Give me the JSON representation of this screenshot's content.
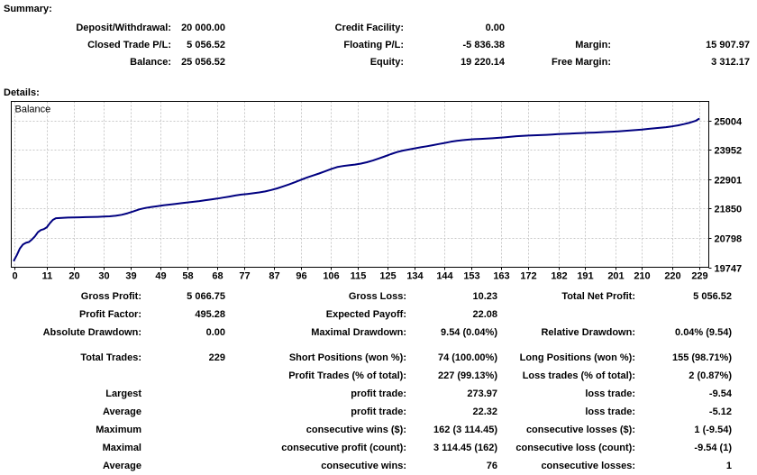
{
  "summary": {
    "heading": "Summary:",
    "r0": {
      "c1l": "Deposit/Withdrawal:",
      "c1v": "20 000.00",
      "c2l": "Credit Facility:",
      "c2v": "0.00"
    },
    "r1": {
      "c1l": "Closed Trade P/L:",
      "c1v": "5 056.52",
      "c2l": "Floating P/L:",
      "c2v": "-5 836.38",
      "c3l": "Margin:",
      "c3v": "15 907.97"
    },
    "r2": {
      "c1l": "Balance:",
      "c1v": "25 056.52",
      "c2l": "Equity:",
      "c2v": "19 220.14",
      "c3l": "Free Margin:",
      "c3v": "3 312.17"
    }
  },
  "details_heading": "Details:",
  "stats": {
    "r0": {
      "c1l": "Gross Profit:",
      "c1v": "5 066.75",
      "c2l": "Gross Loss:",
      "c2v": "10.23",
      "c3l": "Total Net Profit:",
      "c3v": "5 056.52"
    },
    "r1": {
      "c1l": "Profit Factor:",
      "c1v": "495.28",
      "c2l": "Expected Payoff:",
      "c2v": "22.08"
    },
    "r2": {
      "c1l": "Absolute Drawdown:",
      "c1v": "0.00",
      "c2l": "Maximal Drawdown:",
      "c2v": "9.54 (0.04%)",
      "c3l": "Relative Drawdown:",
      "c3v": "0.04% (9.54)"
    },
    "r3": {
      "c1l": "Total Trades:",
      "c1v": "229",
      "c2l": "Short Positions (won %):",
      "c2v": "74 (100.00%)",
      "c3l": "Long Positions (won %):",
      "c3v": "155 (98.71%)"
    },
    "r4": {
      "c2l": "Profit Trades (% of total):",
      "c2v": "227 (99.13%)",
      "c3l": "Loss trades (% of total):",
      "c3v": "2 (0.87%)"
    },
    "r5": {
      "c1l": "Largest",
      "c2l": "profit trade:",
      "c2v": "273.97",
      "c3l": "loss trade:",
      "c3v": "-9.54"
    },
    "r6": {
      "c1l": "Average",
      "c2l": "profit trade:",
      "c2v": "22.32",
      "c3l": "loss trade:",
      "c3v": "-5.12"
    },
    "r7": {
      "c1l": "Maximum",
      "c2l": "consecutive wins ($):",
      "c2v": "162 (3 114.45)",
      "c3l": "consecutive losses ($):",
      "c3v": "1 (-9.54)"
    },
    "r8": {
      "c1l": "Maximal",
      "c2l": "consecutive profit (count):",
      "c2v": "3 114.45 (162)",
      "c3l": "consecutive loss (count):",
      "c3v": "-9.54 (1)"
    },
    "r9": {
      "c1l": "Average",
      "c2l": "consecutive wins:",
      "c2v": "76",
      "c3l": "consecutive losses:",
      "c3v": "1"
    }
  },
  "chart_data": {
    "type": "line",
    "title": "Balance",
    "legend": [
      "Balance"
    ],
    "line_color": "#000080",
    "grid_color": "#c8c8c8",
    "grid": true,
    "x_axis": {
      "max": 229,
      "ticks": [
        0,
        11,
        20,
        30,
        39,
        49,
        58,
        68,
        77,
        87,
        96,
        106,
        115,
        125,
        134,
        144,
        153,
        163,
        172,
        182,
        191,
        201,
        210,
        220,
        229
      ]
    },
    "y_axis": {
      "ticks": [
        19747,
        20798,
        21850,
        22901,
        23952,
        25004
      ]
    },
    "points": [
      [
        0,
        19990
      ],
      [
        1,
        20190
      ],
      [
        2,
        20420
      ],
      [
        3,
        20560
      ],
      [
        4,
        20620
      ],
      [
        5,
        20650
      ],
      [
        6,
        20740
      ],
      [
        7,
        20850
      ],
      [
        8,
        21000
      ],
      [
        9,
        21080
      ],
      [
        10,
        21110
      ],
      [
        11,
        21180
      ],
      [
        12,
        21320
      ],
      [
        13,
        21440
      ],
      [
        14,
        21500
      ],
      [
        16,
        21515
      ],
      [
        18,
        21525
      ],
      [
        20,
        21530
      ],
      [
        22,
        21535
      ],
      [
        24,
        21540
      ],
      [
        26,
        21545
      ],
      [
        28,
        21550
      ],
      [
        30,
        21560
      ],
      [
        32,
        21570
      ],
      [
        34,
        21590
      ],
      [
        36,
        21625
      ],
      [
        38,
        21680
      ],
      [
        40,
        21750
      ],
      [
        42,
        21820
      ],
      [
        44,
        21870
      ],
      [
        46,
        21905
      ],
      [
        48,
        21935
      ],
      [
        50,
        21965
      ],
      [
        52,
        21990
      ],
      [
        54,
        22015
      ],
      [
        56,
        22040
      ],
      [
        58,
        22065
      ],
      [
        60,
        22090
      ],
      [
        62,
        22115
      ],
      [
        64,
        22145
      ],
      [
        66,
        22175
      ],
      [
        68,
        22205
      ],
      [
        70,
        22240
      ],
      [
        72,
        22275
      ],
      [
        74,
        22315
      ],
      [
        76,
        22345
      ],
      [
        78,
        22370
      ],
      [
        80,
        22395
      ],
      [
        82,
        22425
      ],
      [
        84,
        22460
      ],
      [
        86,
        22510
      ],
      [
        88,
        22570
      ],
      [
        90,
        22640
      ],
      [
        92,
        22710
      ],
      [
        94,
        22790
      ],
      [
        96,
        22880
      ],
      [
        98,
        22960
      ],
      [
        100,
        23030
      ],
      [
        102,
        23100
      ],
      [
        104,
        23180
      ],
      [
        106,
        23260
      ],
      [
        108,
        23330
      ],
      [
        110,
        23370
      ],
      [
        112,
        23395
      ],
      [
        114,
        23420
      ],
      [
        116,
        23455
      ],
      [
        118,
        23505
      ],
      [
        120,
        23565
      ],
      [
        122,
        23640
      ],
      [
        124,
        23715
      ],
      [
        126,
        23795
      ],
      [
        128,
        23865
      ],
      [
        130,
        23920
      ],
      [
        132,
        23960
      ],
      [
        134,
        24000
      ],
      [
        136,
        24040
      ],
      [
        138,
        24075
      ],
      [
        140,
        24115
      ],
      [
        142,
        24155
      ],
      [
        144,
        24195
      ],
      [
        146,
        24235
      ],
      [
        148,
        24270
      ],
      [
        150,
        24295
      ],
      [
        152,
        24315
      ],
      [
        154,
        24330
      ],
      [
        156,
        24340
      ],
      [
        158,
        24350
      ],
      [
        160,
        24362
      ],
      [
        162,
        24378
      ],
      [
        164,
        24395
      ],
      [
        166,
        24415
      ],
      [
        168,
        24435
      ],
      [
        170,
        24450
      ],
      [
        172,
        24460
      ],
      [
        174,
        24468
      ],
      [
        176,
        24476
      ],
      [
        178,
        24486
      ],
      [
        180,
        24498
      ],
      [
        182,
        24510
      ],
      [
        184,
        24520
      ],
      [
        186,
        24530
      ],
      [
        188,
        24540
      ],
      [
        190,
        24550
      ],
      [
        192,
        24558
      ],
      [
        194,
        24566
      ],
      [
        196,
        24576
      ],
      [
        198,
        24588
      ],
      [
        200,
        24598
      ],
      [
        202,
        24610
      ],
      [
        204,
        24622
      ],
      [
        206,
        24640
      ],
      [
        208,
        24658
      ],
      [
        210,
        24676
      ],
      [
        212,
        24696
      ],
      [
        214,
        24716
      ],
      [
        216,
        24738
      ],
      [
        218,
        24760
      ],
      [
        220,
        24788
      ],
      [
        222,
        24824
      ],
      [
        224,
        24868
      ],
      [
        226,
        24920
      ],
      [
        228,
        24990
      ],
      [
        229,
        25056
      ]
    ]
  }
}
